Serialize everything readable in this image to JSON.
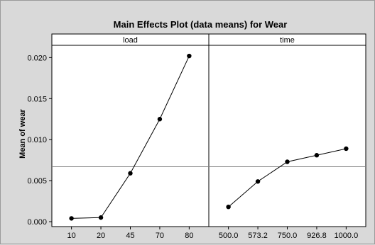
{
  "chart_data": {
    "type": "line",
    "title": "Main Effects Plot (data means) for Wear",
    "ylabel": "Mean of wear",
    "ylim": [
      -0.0006,
      0.0215
    ],
    "yticks": [
      "0.000",
      "0.005",
      "0.010",
      "0.015",
      "0.020"
    ],
    "ytick_values": [
      0.0,
      0.005,
      0.01,
      0.015,
      0.02
    ],
    "overall_mean": 0.0067,
    "marker_color": "#000000",
    "line_color": "#000000",
    "panels": [
      {
        "name": "load",
        "categories": [
          "10",
          "20",
          "45",
          "70",
          "80"
        ],
        "values": [
          0.0004,
          0.0005,
          0.0059,
          0.0125,
          0.0202
        ]
      },
      {
        "name": "time",
        "categories": [
          "500.0",
          "573.2",
          "750.0",
          "926.8",
          "1000.0"
        ],
        "values": [
          0.0018,
          0.0049,
          0.0073,
          0.0081,
          0.0089
        ]
      }
    ]
  }
}
